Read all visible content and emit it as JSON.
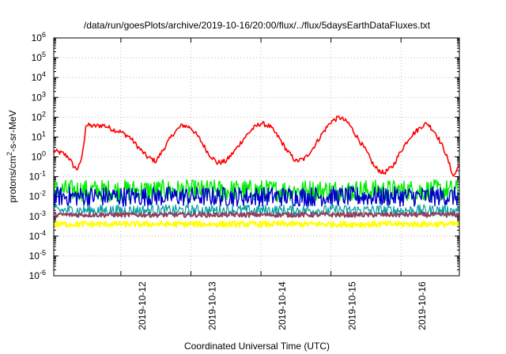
{
  "chart_data": {
    "type": "line",
    "title": "/data/run/goesPlots/archive/2019-10-16/20:00/flux/../flux/5daysEarthDataFluxes.txt",
    "xlabel": "Coordinated Universal Time (UTC)",
    "ylabel": {
      "pre": "protons/cm",
      "sup": "2",
      "post": "-s-sr-MeV"
    },
    "y_scale": "log",
    "ylim": [
      1e-06,
      1000000.0
    ],
    "y_ticks": [
      {
        "value": 1e-06,
        "base": "10",
        "exp": "-6"
      },
      {
        "value": 1e-05,
        "base": "10",
        "exp": "-5"
      },
      {
        "value": 0.0001,
        "base": "10",
        "exp": "-4"
      },
      {
        "value": 0.001,
        "base": "10",
        "exp": "-3"
      },
      {
        "value": 0.01,
        "base": "10",
        "exp": "-2"
      },
      {
        "value": 0.1,
        "base": "10",
        "exp": "-1"
      },
      {
        "value": 1,
        "base": "10",
        "exp": "0"
      },
      {
        "value": 10.0,
        "base": "10",
        "exp": "1"
      },
      {
        "value": 100.0,
        "base": "10",
        "exp": "2"
      },
      {
        "value": 1000.0,
        "base": "10",
        "exp": "3"
      },
      {
        "value": 10000.0,
        "base": "10",
        "exp": "4"
      },
      {
        "value": 100000.0,
        "base": "10",
        "exp": "5"
      },
      {
        "value": 1000000.0,
        "base": "10",
        "exp": "6"
      }
    ],
    "xlim": [
      "2019-10-11 01:00",
      "2019-10-16 20:00"
    ],
    "x_ticks": [
      "2019-10-12",
      "2019-10-13",
      "2019-10-14",
      "2019-10-15",
      "2019-10-16"
    ],
    "grid": true,
    "legend": "none",
    "series": [
      {
        "color": "#ff0000",
        "x": [
          "2019-10-11 01:00",
          "2019-10-11 04:00",
          "2019-10-11 06:00",
          "2019-10-11 08:00",
          "2019-10-11 09:00",
          "2019-10-11 10:00",
          "2019-10-11 11:00",
          "2019-10-11 12:00",
          "2019-10-11 15:00",
          "2019-10-11 18:00",
          "2019-10-11 21:00",
          "2019-10-12 00:00",
          "2019-10-12 03:00",
          "2019-10-12 06:00",
          "2019-10-12 09:00",
          "2019-10-12 12:00",
          "2019-10-12 15:00",
          "2019-10-12 18:00",
          "2019-10-12 21:00",
          "2019-10-13 00:00",
          "2019-10-13 03:00",
          "2019-10-13 06:00",
          "2019-10-13 09:00",
          "2019-10-13 12:00",
          "2019-10-13 15:00",
          "2019-10-13 18:00",
          "2019-10-13 21:00",
          "2019-10-14 00:00",
          "2019-10-14 03:00",
          "2019-10-14 06:00",
          "2019-10-14 09:00",
          "2019-10-14 12:00",
          "2019-10-14 15:00",
          "2019-10-14 18:00",
          "2019-10-14 21:00",
          "2019-10-15 00:00",
          "2019-10-15 03:00",
          "2019-10-15 06:00",
          "2019-10-15 09:00",
          "2019-10-15 12:00",
          "2019-10-15 15:00",
          "2019-10-15 18:00",
          "2019-10-15 21:00",
          "2019-10-16 00:00",
          "2019-10-16 03:00",
          "2019-10-16 06:00",
          "2019-10-16 07:00",
          "2019-10-16 09:00",
          "2019-10-16 12:00",
          "2019-10-16 15:00",
          "2019-10-16 18:00",
          "2019-10-16 20:00"
        ],
        "y": [
          2,
          1.5,
          1,
          0.3,
          0.25,
          0.4,
          2,
          40,
          35,
          40,
          25,
          18,
          10,
          3,
          1,
          0.6,
          3,
          15,
          40,
          30,
          8,
          1.5,
          0.5,
          0.6,
          2,
          8,
          25,
          50,
          35,
          10,
          2,
          0.6,
          0.8,
          3,
          15,
          60,
          100,
          50,
          10,
          2,
          0.3,
          0.15,
          0.3,
          2,
          10,
          25,
          35,
          50,
          15,
          2,
          0.1,
          0.4
        ]
      },
      {
        "color": "#00ee00",
        "x": [
          "2019-10-11 01:00",
          "2019-10-16 20:00"
        ],
        "y": [
          0.02,
          0.02
        ]
      },
      {
        "color": "#0000cc",
        "x": [
          "2019-10-11 01:00",
          "2019-10-16 20:00"
        ],
        "y": [
          0.01,
          0.01
        ]
      },
      {
        "color": "#00a0a0",
        "x": [
          "2019-10-11 01:00",
          "2019-10-16 20:00"
        ],
        "y": [
          0.002,
          0.002
        ]
      },
      {
        "color": "#904060",
        "x": [
          "2019-10-11 01:00",
          "2019-10-16 20:00"
        ],
        "y": [
          0.0012,
          0.0012
        ]
      },
      {
        "color": "#ffff00",
        "x": [
          "2019-10-11 01:00",
          "2019-10-16 20:00"
        ],
        "y": [
          0.0004,
          0.0004
        ]
      }
    ]
  }
}
